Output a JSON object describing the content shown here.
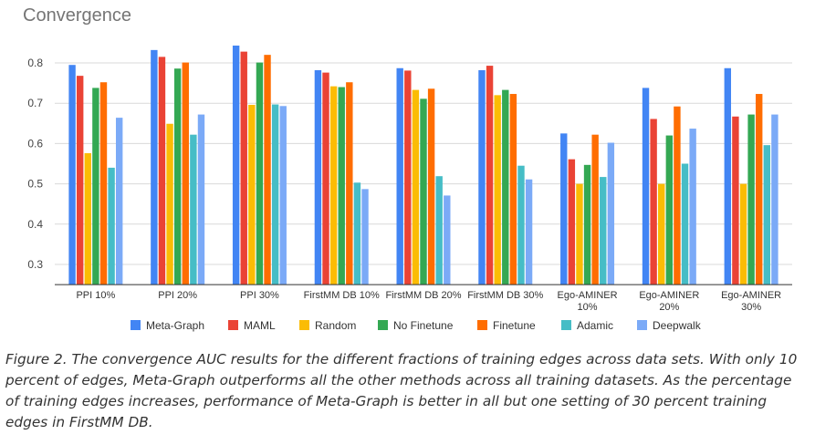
{
  "chart_data": {
    "type": "bar",
    "title": "Convergence",
    "xlabel": "",
    "ylabel": "",
    "ylim": [
      0.25,
      0.85
    ],
    "yticks": [
      "0.3",
      "0.4",
      "0.5",
      "0.6",
      "0.7",
      "0.8"
    ],
    "grid": true,
    "legend_position": "bottom",
    "categories": [
      [
        "PPI 10%"
      ],
      [
        "PPI 20%"
      ],
      [
        "PPI 30%"
      ],
      [
        "FirstMM DB 10%"
      ],
      [
        "FirstMM DB 20%"
      ],
      [
        "FirstMM DB 30%"
      ],
      [
        "Ego-AMINER",
        "10%"
      ],
      [
        "Ego-AMINER",
        "20%"
      ],
      [
        "Ego-AMINER",
        "30%"
      ]
    ],
    "series": [
      {
        "name": "Meta-Graph",
        "color": "#4285f4",
        "values": [
          0.795,
          0.832,
          0.843,
          0.782,
          0.787,
          0.782,
          0.625,
          0.738,
          0.787
        ]
      },
      {
        "name": "MAML",
        "color": "#ea4335",
        "values": [
          0.768,
          0.815,
          0.828,
          0.776,
          0.781,
          0.793,
          0.561,
          0.661,
          0.667
        ]
      },
      {
        "name": "Random",
        "color": "#fbbc04",
        "values": [
          0.576,
          0.649,
          0.696,
          0.742,
          0.733,
          0.72,
          0.5,
          0.5,
          0.5
        ]
      },
      {
        "name": "No Finetune",
        "color": "#34a853",
        "values": [
          0.738,
          0.786,
          0.801,
          0.74,
          0.711,
          0.733,
          0.547,
          0.62,
          0.672
        ]
      },
      {
        "name": "Finetune",
        "color": "#ff6d01",
        "values": [
          0.752,
          0.801,
          0.82,
          0.752,
          0.736,
          0.723,
          0.622,
          0.692,
          0.723
        ]
      },
      {
        "name": "Adamic",
        "color": "#46bdc6",
        "values": [
          0.54,
          0.622,
          0.697,
          0.503,
          0.519,
          0.545,
          0.517,
          0.55,
          0.596
        ]
      },
      {
        "name": "Deepwalk",
        "color": "#7baaf7",
        "values": [
          0.664,
          0.672,
          0.693,
          0.487,
          0.471,
          0.511,
          0.602,
          0.637,
          0.672
        ]
      }
    ]
  },
  "caption": "Figure 2. The convergence AUC results for the different fractions of training edges across data sets. With only 10 percent of edges, Meta-Graph outperforms all the other methods across all training datasets. As the percentage of training edges increases, performance of Meta-Graph is better in all but one setting of 30 percent training edges in FirstMM DB."
}
